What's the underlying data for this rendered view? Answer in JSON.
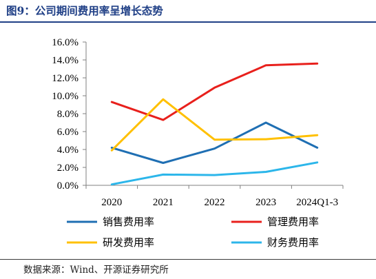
{
  "header": {
    "title": "图9：公司期间费用率呈增长态势"
  },
  "footer": {
    "source": "数据来源：Wind、开源证券研究所"
  },
  "colors": {
    "title": "#1f3f86",
    "sales": "#1f6fb3",
    "management": "#e8201c",
    "rd": "#ffc000",
    "finance": "#2cb6ea"
  },
  "chart_data": {
    "type": "line",
    "categories": [
      "2020",
      "2021",
      "2022",
      "2023",
      "2024Q1-3"
    ],
    "ylim": [
      0,
      16
    ],
    "yticks": [
      "0.0%",
      "2.0%",
      "4.0%",
      "6.0%",
      "8.0%",
      "10.0%",
      "12.0%",
      "14.0%",
      "16.0%"
    ],
    "series": [
      {
        "name": "销售费用率",
        "color": "#1f6fb3",
        "values": [
          4.2,
          2.5,
          4.1,
          7.0,
          4.2
        ]
      },
      {
        "name": "管理费用率",
        "color": "#e8201c",
        "values": [
          9.3,
          7.3,
          10.9,
          13.4,
          13.6
        ]
      },
      {
        "name": "研发费用率",
        "color": "#ffc000",
        "values": [
          3.9,
          9.6,
          5.1,
          5.15,
          5.6
        ]
      },
      {
        "name": "财务费用率",
        "color": "#2cb6ea",
        "values": [
          0.1,
          1.2,
          1.15,
          1.5,
          2.55
        ]
      }
    ],
    "legend": "bottom"
  }
}
